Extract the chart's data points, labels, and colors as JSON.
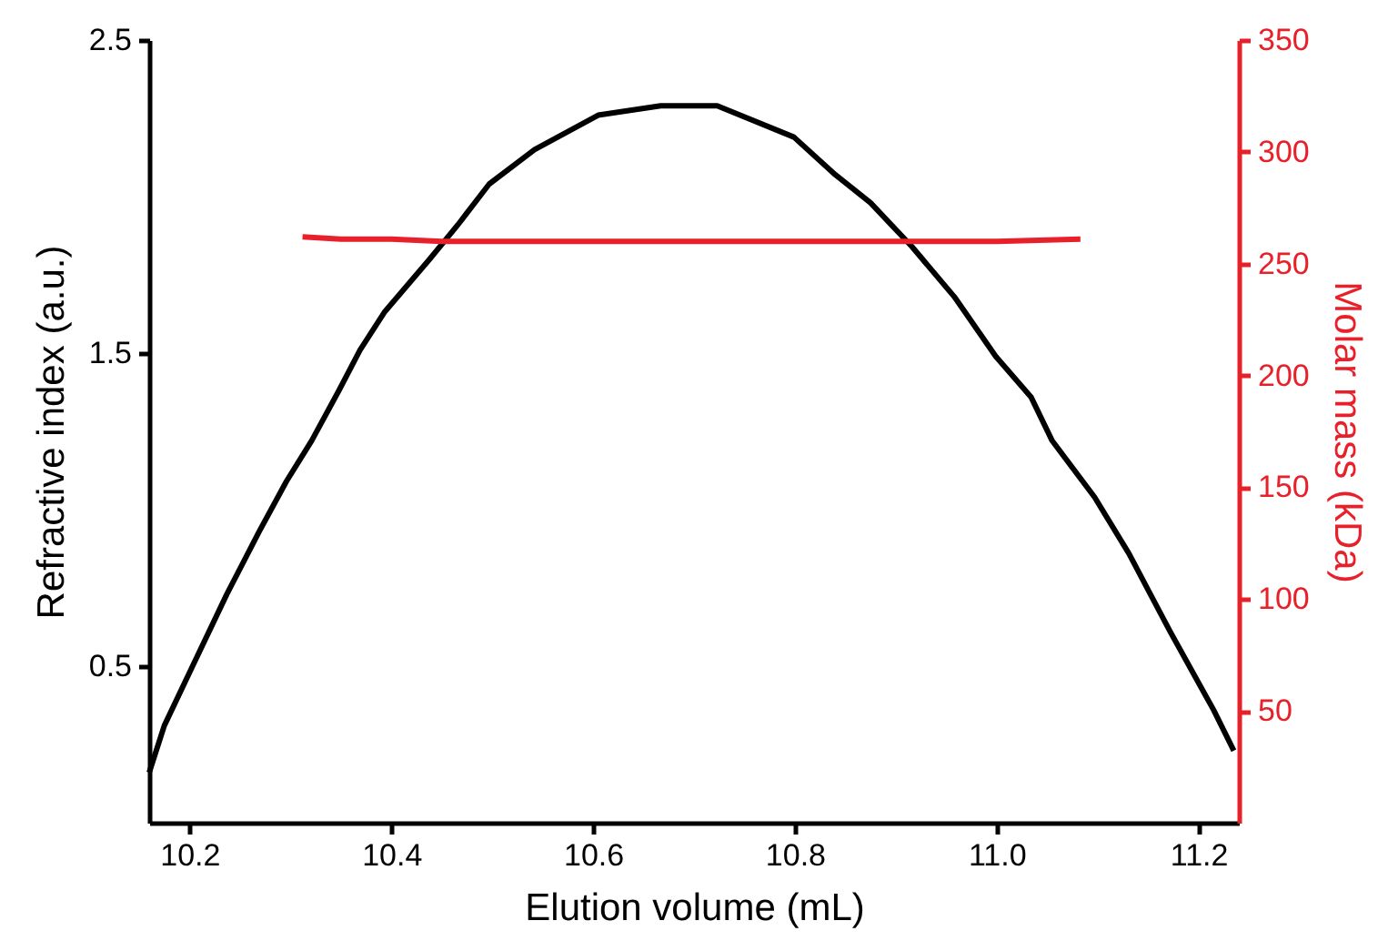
{
  "chart_data": {
    "type": "line",
    "xlabel": "Elution volume (mL)",
    "ylabel": "Refractive index (a.u.)",
    "y2label": "Molar mass (kDa)",
    "xlim": [
      10.16,
      11.24
    ],
    "xticks": [
      {
        "value": 10.2,
        "label": "10.2"
      },
      {
        "value": 10.4,
        "label": "10.4"
      },
      {
        "value": 10.6,
        "label": "10.6"
      },
      {
        "value": 10.8,
        "label": "10.8"
      },
      {
        "value": 11,
        "label": "11.0"
      },
      {
        "value": 11.2,
        "label": "11.2"
      }
    ],
    "ylim": [
      0,
      2.5
    ],
    "yticks": [
      0.5,
      1.5,
      2.5
    ],
    "y2lim": [
      0,
      350
    ],
    "y2ticks": [
      50,
      100,
      150,
      200,
      250,
      300,
      350
    ],
    "grid": false,
    "marker": "none",
    "line_style": "solid",
    "series": [
      {
        "color": "#000000",
        "x": [
          10.16,
          10.175,
          10.203,
          10.237,
          10.269,
          10.296,
          10.321,
          10.348,
          10.369,
          10.393,
          10.438,
          10.466,
          10.497,
          10.542,
          10.605,
          10.667,
          10.723,
          10.799,
          10.84,
          10.875,
          10.916,
          10.958,
          10.999,
          11.034,
          11.055,
          11.097,
          11.131,
          11.172,
          11.215,
          11.235
        ],
        "values": [
          0.16,
          0.31,
          0.5,
          0.73,
          0.93,
          1.09,
          1.22,
          1.38,
          1.51,
          1.63,
          1.8,
          1.91,
          2.04,
          2.15,
          2.26,
          2.29,
          2.29,
          2.19,
          2.07,
          1.98,
          1.84,
          1.68,
          1.49,
          1.36,
          1.22,
          1.04,
          0.86,
          0.61,
          0.36,
          0.23
        ]
      },
      {
        "axis": "y2",
        "color": "#e8202a",
        "x": [
          10.312,
          10.35,
          10.4,
          10.45,
          10.5,
          10.6,
          10.7,
          10.8,
          10.9,
          11.0,
          11.083
        ],
        "values": [
          262,
          261,
          261,
          260,
          260,
          260,
          260,
          260,
          260,
          260,
          261
        ]
      }
    ]
  }
}
